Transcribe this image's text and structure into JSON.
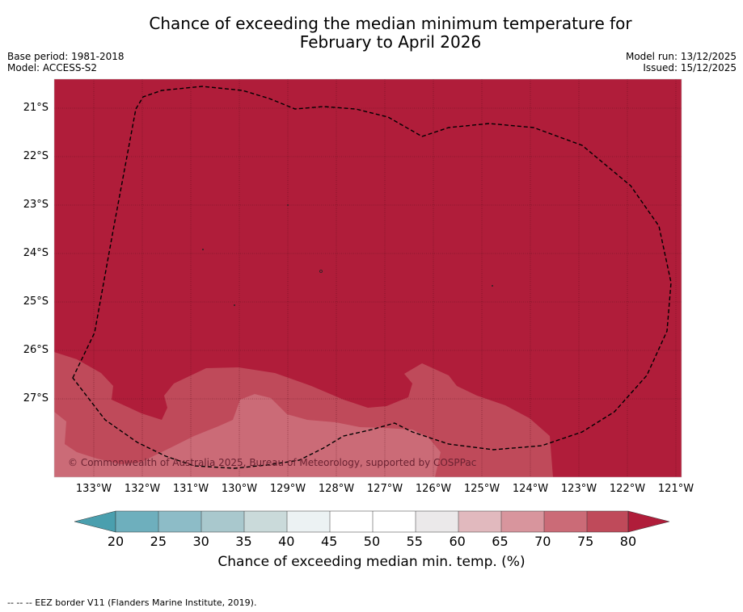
{
  "title_line1": "Chance of exceeding the median minimum temperature for",
  "title_line2": "February to April 2026",
  "base_period": "Base period: 1981-2018",
  "model": "Model: ACCESS-S2",
  "model_run": "Model run: 13/12/2025",
  "issued": "Issued: 15/12/2025",
  "copyright": "© Commonwealth of Australia 2025, Bureau of Meteorology, supported by COSPPac",
  "lon_labels": [
    "133°W",
    "132°W",
    "131°W",
    "130°W",
    "129°W",
    "128°W",
    "127°W",
    "126°W",
    "125°W",
    "124°W",
    "123°W",
    "122°W",
    "121°W"
  ],
  "lat_labels": [
    "21°S",
    "22°S",
    "23°S",
    "24°S",
    "25°S",
    "26°S",
    "27°S"
  ],
  "colorbar": {
    "label": "Chance of exceeding median min. temp. (%)",
    "ticks": [
      "20",
      "25",
      "30",
      "35",
      "40",
      "45",
      "50",
      "55",
      "60",
      "65",
      "70",
      "75",
      "80"
    ],
    "colors": {
      "below20": "#4a9fae",
      "20-25": "#6eafbd",
      "25-30": "#8dbcc7",
      "30-35": "#a9c8cd",
      "35-40": "#cadada",
      "40-45": "#ecf2f3",
      "45-50": "#ffffff",
      "50-55": "#ffffff",
      "55-60": "#ebe9ea",
      "60-65": "#e1b9be",
      "65-70": "#d8959d",
      "70-75": "#cb6b77",
      "75-80": "#bf4a5a",
      "above80": "#b01d3a"
    }
  },
  "footer": "--  --  -- EEZ border V11 (Flanders Marine Institute, 2019)."
}
